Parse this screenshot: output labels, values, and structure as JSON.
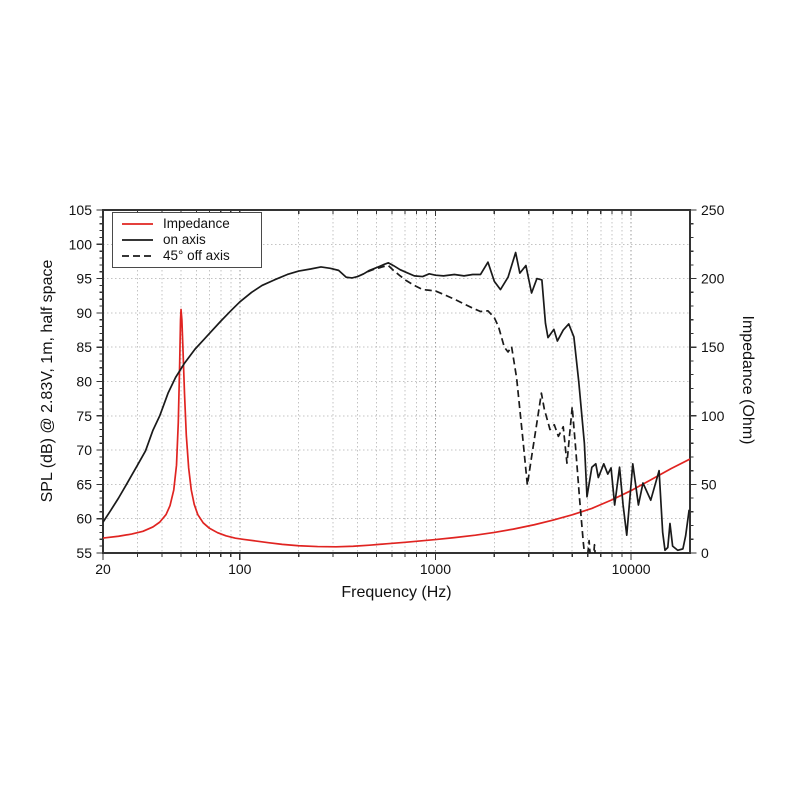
{
  "chart_data": {
    "type": "line",
    "title": "",
    "background": "#ffffff",
    "grid": true,
    "legend_position": "top-left",
    "x_axis": {
      "label": "Frequency (Hz)",
      "scale": "log",
      "min": 20,
      "max": 20000,
      "major_ticks": [
        20,
        100,
        1000,
        10000
      ],
      "tick_labels": [
        "20",
        "100",
        "1000",
        "10000"
      ]
    },
    "y_left": {
      "label": "SPL (dB) @ 2.83V, 1m, half space",
      "min": 55,
      "max": 105,
      "major_step": 5,
      "minor_step": 1,
      "tick_labels": [
        "55",
        "60",
        "65",
        "70",
        "75",
        "80",
        "85",
        "90",
        "95",
        "100",
        "105"
      ]
    },
    "y_right": {
      "label": "Impedance (Ohm)",
      "min": 0,
      "max": 250,
      "major_step": 50,
      "minor_step": 10,
      "tick_labels": [
        "0",
        "50",
        "100",
        "150",
        "200",
        "250"
      ]
    },
    "colors": {
      "impedance": "#e02421",
      "spl": "#1a1a1a",
      "grid_minor": "#c3c3c3",
      "grid_major": "#9b9b9b",
      "axis": "#333333"
    },
    "legend": [
      {
        "label": "Impedance",
        "color": "#e02421",
        "dash": "solid"
      },
      {
        "label": "on axis",
        "color": "#1a1a1a",
        "dash": "solid"
      },
      {
        "label": "45° off axis",
        "color": "#1a1a1a",
        "dash": "dashed"
      }
    ],
    "series": [
      {
        "name": "Impedance",
        "axis": "right",
        "unit": "Ohm",
        "color": "#e02421",
        "style": "solid",
        "points": [
          [
            20,
            10.9
          ],
          [
            24,
            12.2
          ],
          [
            28,
            13.8
          ],
          [
            32,
            15.8
          ],
          [
            36,
            19
          ],
          [
            39,
            22.5
          ],
          [
            42,
            28
          ],
          [
            44,
            34.5
          ],
          [
            46,
            46
          ],
          [
            47.5,
            64
          ],
          [
            48.5,
            95
          ],
          [
            49.3,
            138
          ],
          [
            49.8,
            170
          ],
          [
            50.1,
            177.5
          ],
          [
            50.6,
            170
          ],
          [
            51.3,
            147
          ],
          [
            52.2,
            116
          ],
          [
            53.3,
            86
          ],
          [
            54.8,
            62
          ],
          [
            56.5,
            46
          ],
          [
            58.5,
            35.5
          ],
          [
            61,
            28
          ],
          [
            65,
            22
          ],
          [
            70,
            18
          ],
          [
            77,
            14.8
          ],
          [
            85,
            12.5
          ],
          [
            95,
            10.8
          ],
          [
            105,
            9.9
          ],
          [
            120,
            8.8
          ],
          [
            140,
            7.5
          ],
          [
            165,
            6.3
          ],
          [
            200,
            5.3
          ],
          [
            250,
            4.7
          ],
          [
            310,
            4.5
          ],
          [
            380,
            4.9
          ],
          [
            460,
            5.7
          ],
          [
            560,
            6.7
          ],
          [
            700,
            7.8
          ],
          [
            850,
            8.9
          ],
          [
            1000,
            9.8
          ],
          [
            1250,
            11.2
          ],
          [
            1600,
            13
          ],
          [
            2000,
            15
          ],
          [
            2500,
            17.4
          ],
          [
            3200,
            20.6
          ],
          [
            4000,
            24
          ],
          [
            5000,
            27.8
          ],
          [
            6300,
            32.5
          ],
          [
            8000,
            38.8
          ],
          [
            10000,
            45.5
          ],
          [
            12500,
            53
          ],
          [
            16000,
            61.5
          ],
          [
            20000,
            68.5
          ]
        ]
      },
      {
        "name": "on axis",
        "axis": "left",
        "unit": "dB",
        "color": "#1a1a1a",
        "style": "solid",
        "points": [
          [
            20,
            59.5
          ],
          [
            22,
            61.3
          ],
          [
            24,
            63
          ],
          [
            26,
            64.7
          ],
          [
            28,
            66.3
          ],
          [
            30,
            67.8
          ],
          [
            33,
            69.9
          ],
          [
            36,
            72.9
          ],
          [
            39,
            75
          ],
          [
            43,
            78.3
          ],
          [
            47,
            80.6
          ],
          [
            52,
            82.6
          ],
          [
            59,
            84.7
          ],
          [
            65,
            86
          ],
          [
            70,
            87
          ],
          [
            80,
            88.8
          ],
          [
            90,
            90.3
          ],
          [
            100,
            91.6
          ],
          [
            115,
            93
          ],
          [
            130,
            94
          ],
          [
            150,
            94.8
          ],
          [
            175,
            95.6
          ],
          [
            200,
            96.1
          ],
          [
            230,
            96.4
          ],
          [
            260,
            96.7
          ],
          [
            290,
            96.5
          ],
          [
            320,
            96.2
          ],
          [
            350,
            95.2
          ],
          [
            375,
            95.1
          ],
          [
            400,
            95.3
          ],
          [
            430,
            95.7
          ],
          [
            460,
            96.2
          ],
          [
            490,
            96.5
          ],
          [
            520,
            96.8
          ],
          [
            550,
            97.1
          ],
          [
            575,
            97.3
          ],
          [
            610,
            96.9
          ],
          [
            660,
            96.3
          ],
          [
            710,
            95.9
          ],
          [
            780,
            95.4
          ],
          [
            860,
            95.3
          ],
          [
            930,
            95.7
          ],
          [
            1000,
            95.5
          ],
          [
            1100,
            95.4
          ],
          [
            1250,
            95.6
          ],
          [
            1400,
            95.4
          ],
          [
            1550,
            95.6
          ],
          [
            1700,
            95.6
          ],
          [
            1855,
            97.4
          ],
          [
            2000,
            94.6
          ],
          [
            2150,
            93.4
          ],
          [
            2350,
            95.2
          ],
          [
            2570,
            98.8
          ],
          [
            2700,
            95.8
          ],
          [
            2900,
            96.9
          ],
          [
            3100,
            92.9
          ],
          [
            3300,
            95
          ],
          [
            3500,
            94.8
          ],
          [
            3650,
            88.5
          ],
          [
            3760,
            86.4
          ],
          [
            4030,
            87.6
          ],
          [
            4200,
            85.9
          ],
          [
            4500,
            87.5
          ],
          [
            4800,
            88.4
          ],
          [
            5100,
            86.5
          ],
          [
            5400,
            80
          ],
          [
            5770,
            71
          ],
          [
            5950,
            63.2
          ],
          [
            6300,
            67.5
          ],
          [
            6600,
            68
          ],
          [
            6800,
            66
          ],
          [
            7250,
            68
          ],
          [
            7600,
            66.5
          ],
          [
            7900,
            67.4
          ],
          [
            8240,
            62
          ],
          [
            8730,
            67.5
          ],
          [
            9100,
            62
          ],
          [
            9500,
            57.6
          ],
          [
            10200,
            68
          ],
          [
            10900,
            62
          ],
          [
            11500,
            65.2
          ],
          [
            12600,
            62.7
          ],
          [
            13900,
            67
          ],
          [
            14500,
            58
          ],
          [
            14900,
            55.4
          ],
          [
            15400,
            55.8
          ],
          [
            15800,
            59.3
          ],
          [
            16300,
            56
          ],
          [
            17300,
            55.4
          ],
          [
            18400,
            55.6
          ],
          [
            19000,
            57.5
          ],
          [
            19800,
            61.3
          ]
        ]
      },
      {
        "name": "45° off axis",
        "axis": "left",
        "unit": "dB",
        "color": "#1a1a1a",
        "style": "dashed",
        "points": [
          [
            450,
            96
          ],
          [
            490,
            96.4
          ],
          [
            520,
            96.6
          ],
          [
            550,
            96.8
          ],
          [
            575,
            96.9
          ],
          [
            610,
            96.2
          ],
          [
            660,
            95.4
          ],
          [
            710,
            94.7
          ],
          [
            780,
            94
          ],
          [
            860,
            93.4
          ],
          [
            930,
            93.3
          ],
          [
            1000,
            93.2
          ],
          [
            1100,
            92.7
          ],
          [
            1250,
            92
          ],
          [
            1400,
            91.3
          ],
          [
            1550,
            90.7
          ],
          [
            1700,
            90.2
          ],
          [
            1855,
            90.3
          ],
          [
            2000,
            89.3
          ],
          [
            2100,
            88
          ],
          [
            2250,
            85
          ],
          [
            2350,
            84.3
          ],
          [
            2450,
            85.1
          ],
          [
            2600,
            80.5
          ],
          [
            2800,
            71.5
          ],
          [
            2950,
            64.9
          ],
          [
            3100,
            69
          ],
          [
            3300,
            74
          ],
          [
            3480,
            78.3
          ],
          [
            3600,
            76
          ],
          [
            3850,
            73
          ],
          [
            4050,
            73.7
          ],
          [
            4250,
            72
          ],
          [
            4500,
            73.4
          ],
          [
            4700,
            68.1
          ],
          [
            5000,
            76.3
          ],
          [
            5200,
            70.5
          ],
          [
            5450,
            63
          ],
          [
            5700,
            56.5
          ],
          [
            5900,
            52.5
          ],
          [
            6100,
            56.8
          ],
          [
            6300,
            51.5
          ],
          [
            6500,
            56.2
          ],
          [
            6700,
            51
          ],
          [
            6900,
            53
          ]
        ]
      }
    ]
  }
}
